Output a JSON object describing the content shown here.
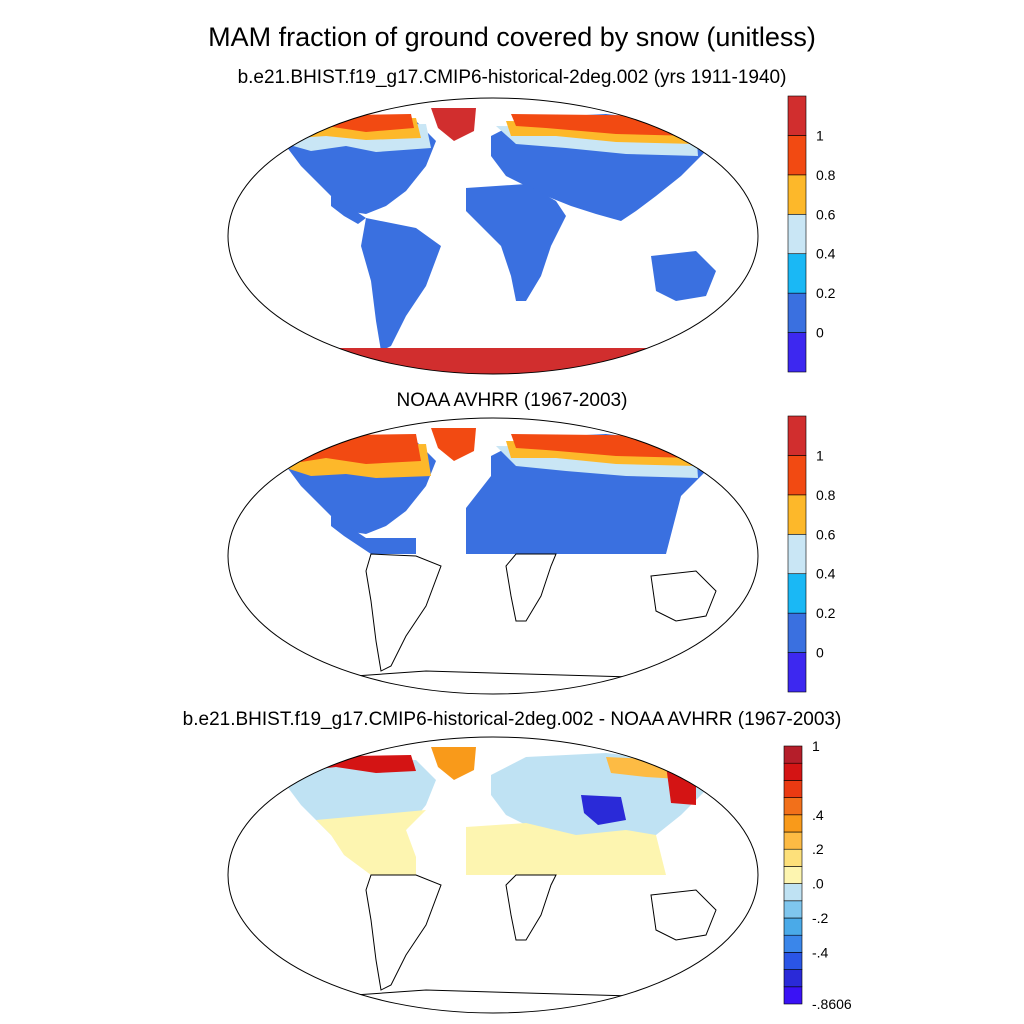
{
  "title": "MAM fraction of ground covered by snow (unitless)",
  "colors": {
    "land_outline": "#000000",
    "ellipse_outline": "#000000",
    "snow_free": "#3a70e0",
    "warm_tones": [
      "#ffe45c",
      "#fdb92e",
      "#f57c00",
      "#e8380d",
      "#c62a2a"
    ]
  },
  "panels": [
    {
      "title": "b.e21.BHIST.f19_g17.CMIP6-historical-2deg.002 (yrs 1911-1940)",
      "colorbar": {
        "colors": [
          "#3d28f0",
          "#3a70e0",
          "#1ab8f5",
          "#c9e6f5",
          "#fdb82a",
          "#f24a12",
          "#d12e2e"
        ],
        "labels": [
          "0",
          "0.2",
          "0.4",
          "0.6",
          "0.8",
          "1"
        ]
      }
    },
    {
      "title": "NOAA AVHRR (1967-2003)",
      "colorbar": {
        "colors": [
          "#3d28f0",
          "#3a70e0",
          "#1ab8f5",
          "#c9e6f5",
          "#fdb82a",
          "#f24a12",
          "#d12e2e"
        ],
        "labels": [
          "0",
          "0.2",
          "0.4",
          "0.6",
          "0.8",
          "1"
        ]
      }
    },
    {
      "title": "b.e21.BHIST.f19_g17.CMIP6-historical-2deg.002 - NOAA AVHRR (1967-2003)",
      "colorbar": {
        "colors": [
          "#3a12f5",
          "#2a2ad8",
          "#2a55e6",
          "#3a86ea",
          "#4aaae8",
          "#7fc6ee",
          "#bfe2f3",
          "#fdf5b0",
          "#fde07a",
          "#fdbb44",
          "#f99a1a",
          "#f2701a",
          "#ea3a12",
          "#d41414",
          "#b51e2a"
        ],
        "labels": [
          "1",
          ".4",
          ".2",
          ".0",
          "-.2",
          "-.4",
          "-.8606"
        ]
      }
    }
  ]
}
